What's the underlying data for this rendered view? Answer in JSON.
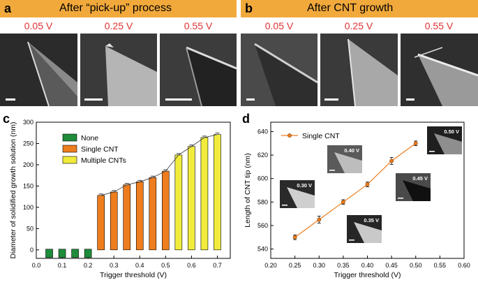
{
  "panel_a": {
    "letter": "a",
    "title": "After “pick-up” process",
    "voltages": [
      "0.05 V",
      "0.25 V",
      "0.55 V"
    ]
  },
  "panel_b": {
    "letter": "b",
    "title": "After CNT growth",
    "voltages": [
      "0.05 V",
      "0.25 V",
      "0.55 V"
    ]
  },
  "panel_c_letter": "c",
  "panel_d_letter": "d",
  "colors": {
    "banner": "#f2a93b",
    "voltage_text": "#e03131",
    "none": "#1e8c3a",
    "single": "#ee7d1e",
    "multiple": "#f1ec3c",
    "line_d": "#ee7d1e"
  },
  "chart_data": [
    {
      "type": "bar",
      "xlabel": "Trigger threshold (V)",
      "ylabel": "Diameter of solidified growth solution (nm)",
      "xlim": [
        0.0,
        0.75
      ],
      "ylim": [
        -20,
        300
      ],
      "xticks": [
        "0.0",
        "0.1",
        "0.2",
        "0.3",
        "0.4",
        "0.5",
        "0.6",
        "0.7"
      ],
      "yticks": [
        "0",
        "50",
        "100",
        "150",
        "200",
        "250",
        "300"
      ],
      "legend_position": "top-left",
      "series": [
        {
          "name": "None",
          "x": [
            0.05,
            0.1,
            0.15,
            0.2
          ],
          "values": [
            0,
            0,
            0,
            0
          ]
        },
        {
          "name": "Single CNT",
          "x": [
            0.25,
            0.3,
            0.35,
            0.4,
            0.45,
            0.5
          ],
          "values": [
            128,
            136,
            153,
            160,
            170,
            185
          ]
        },
        {
          "name": "Multiple CNTs",
          "x": [
            0.55,
            0.6,
            0.65,
            0.7
          ],
          "values": [
            223,
            243,
            264,
            271
          ]
        }
      ]
    },
    {
      "type": "line",
      "xlabel": "Trigger threshold (V)",
      "ylabel": "Length of CNT tip (nm)",
      "xlim": [
        0.2,
        0.6
      ],
      "ylim": [
        532,
        648
      ],
      "xticks": [
        "0.20",
        "0.25",
        "0.30",
        "0.35",
        "0.40",
        "0.45",
        "0.50",
        "0.55",
        "0.60"
      ],
      "yticks": [
        "540",
        "560",
        "580",
        "600",
        "620",
        "640"
      ],
      "legend_position": "top-left",
      "series": [
        {
          "name": "Single CNT",
          "x": [
            0.25,
            0.3,
            0.35,
            0.4,
            0.45,
            0.5
          ],
          "y": [
            550,
            565,
            580,
            595,
            615,
            630
          ],
          "error": [
            2,
            3,
            2,
            2,
            3,
            2
          ]
        }
      ],
      "insets": [
        "0.30 V",
        "0.40 V",
        "0.50 V",
        "0.35 V",
        "0.45 V"
      ]
    }
  ]
}
